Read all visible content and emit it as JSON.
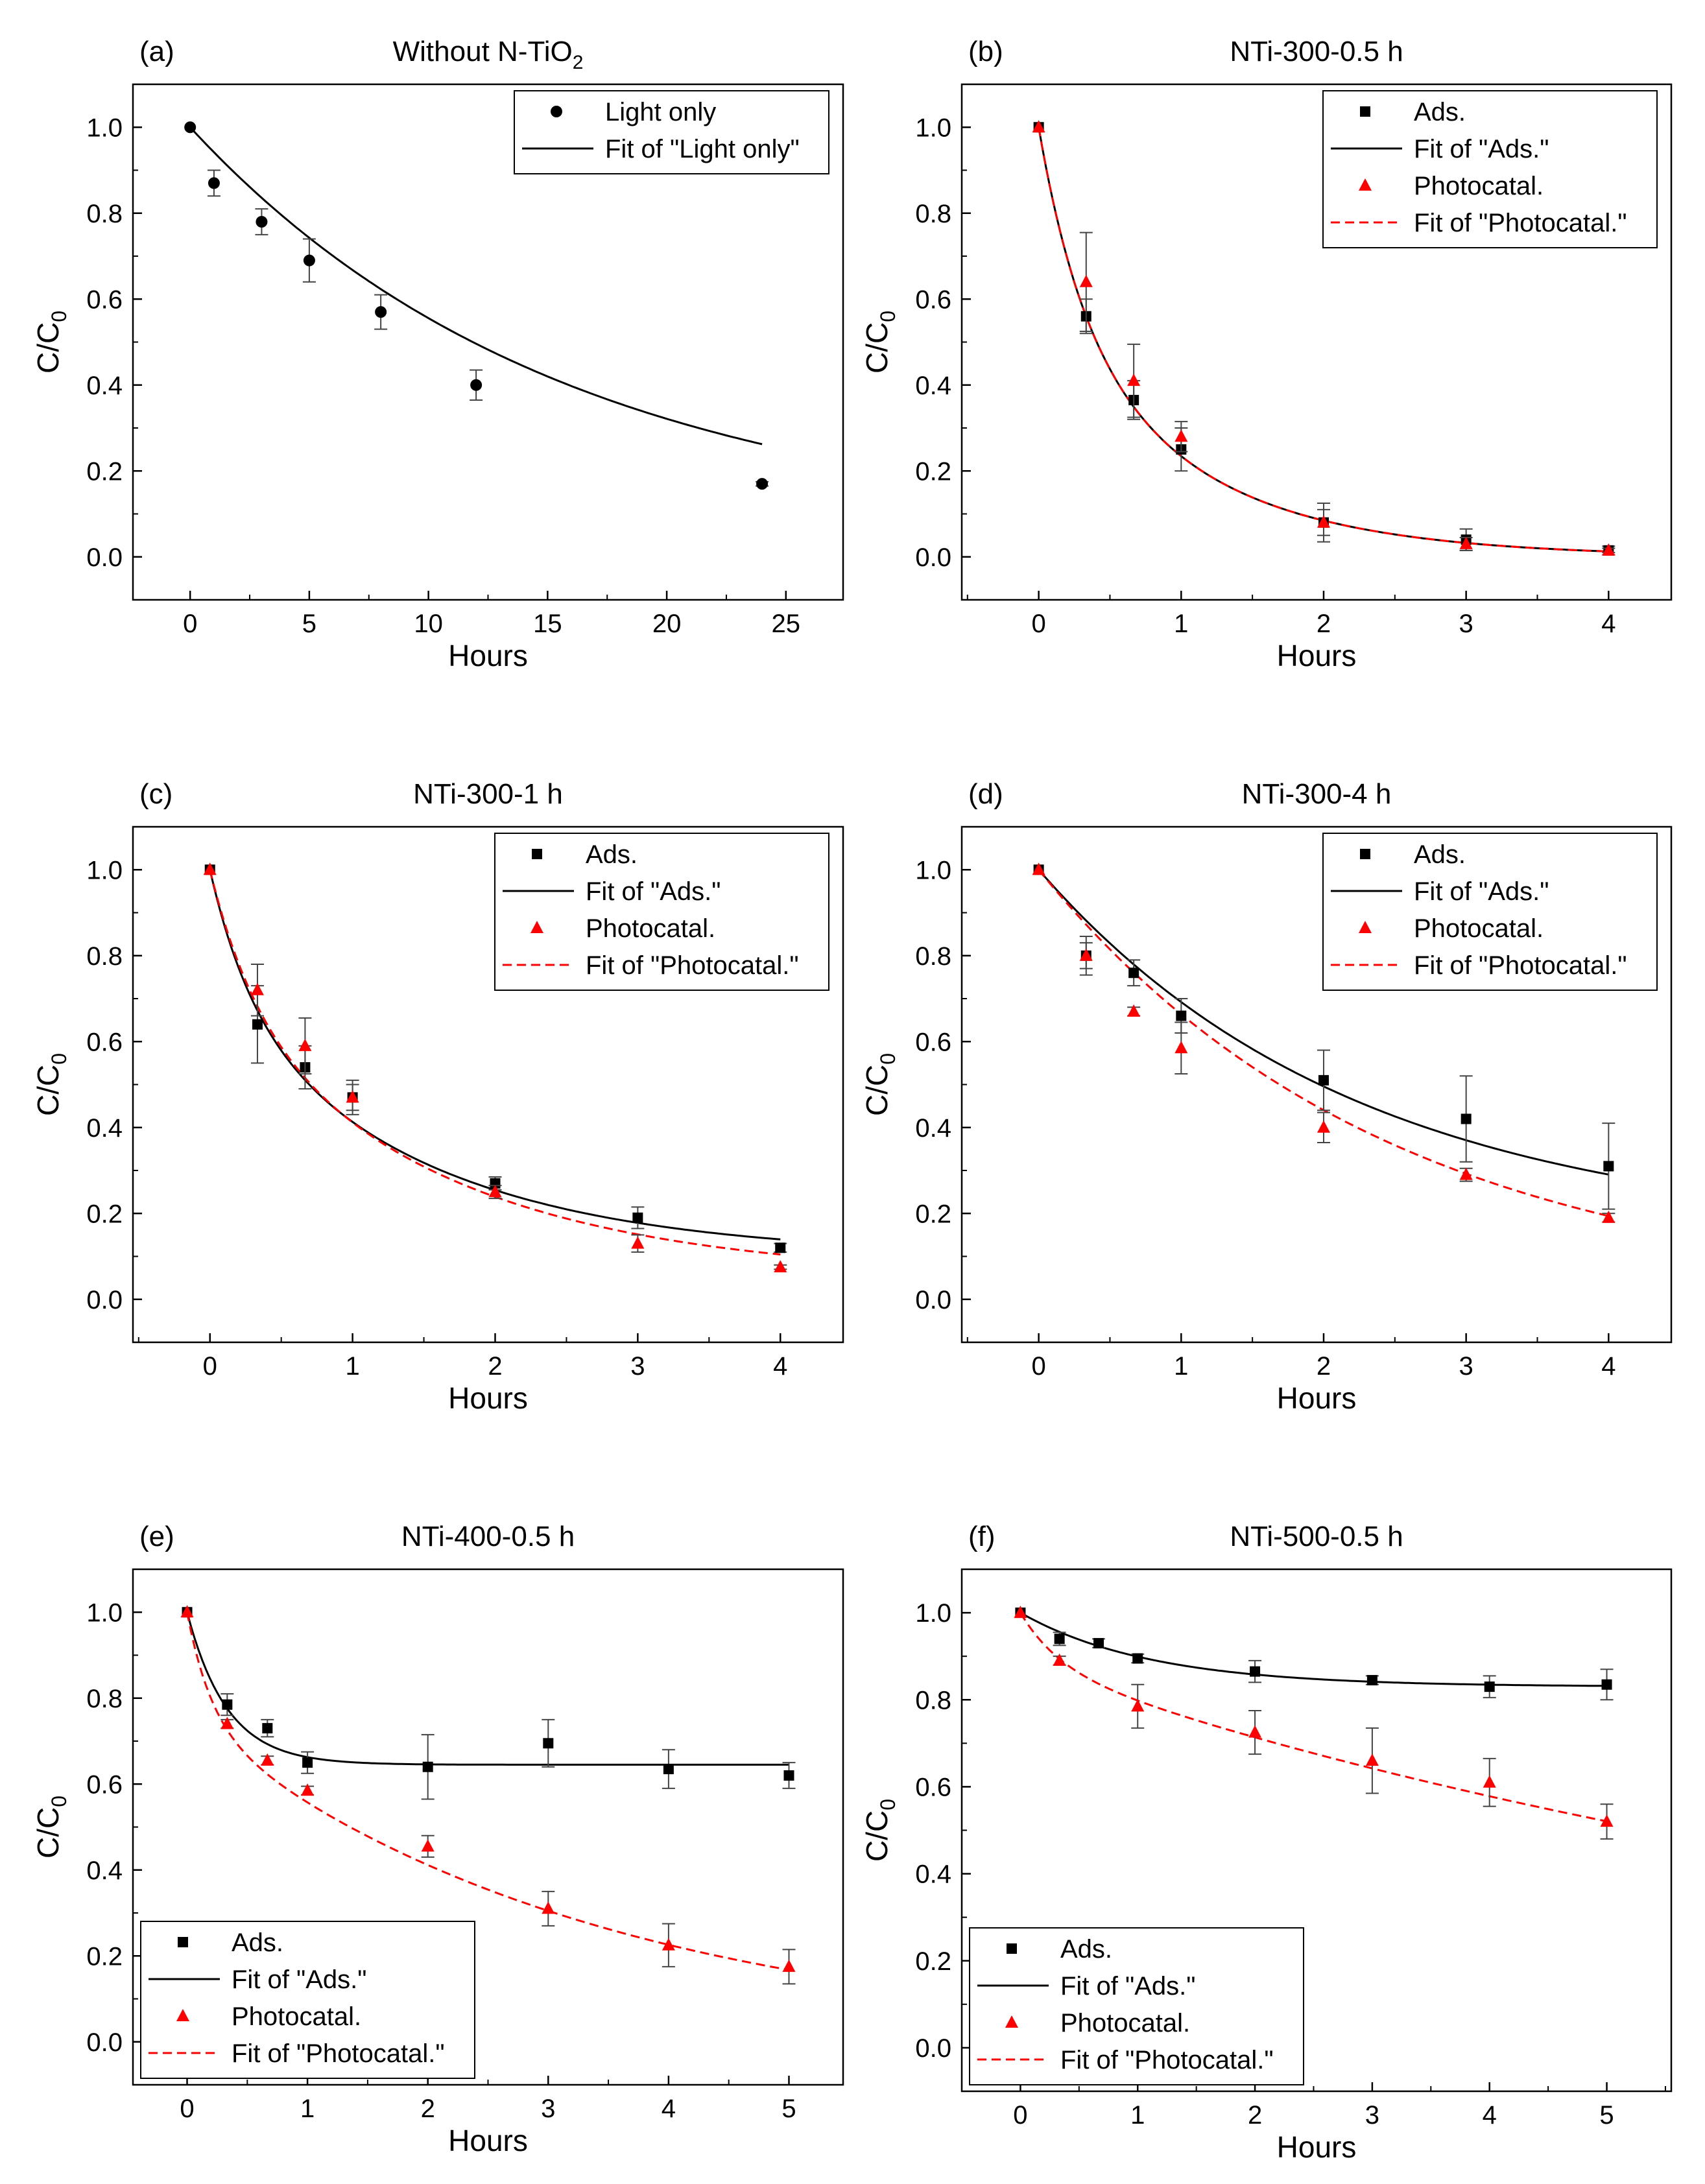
{
  "figure": {
    "ylabel_prefix": "C/C",
    "ylabel_sub": "0"
  },
  "chart_data": [
    {
      "panel": "(a)",
      "type": "scatter",
      "title": "Without N-TiO",
      "title_sub": "2",
      "xlabel": "Hours",
      "ylabel": "C/C0",
      "xlim": [
        -2.4,
        27.4
      ],
      "ylim": [
        -0.1,
        1.1
      ],
      "xticks": [
        0,
        5,
        10,
        15,
        20,
        25
      ],
      "yticks": [
        0.0,
        0.2,
        0.4,
        0.6,
        0.8,
        1.0
      ],
      "legend_position": "top-right",
      "series": [
        {
          "name": "Light only",
          "kind": "points",
          "marker": "circle",
          "color": "#000000",
          "x": [
            0,
            1,
            3,
            5,
            8,
            12,
            24
          ],
          "y": [
            1.0,
            0.87,
            0.78,
            0.69,
            0.57,
            0.4,
            0.17
          ],
          "err": [
            0,
            0.03,
            0.03,
            0.05,
            0.04,
            0.035,
            0.005
          ]
        },
        {
          "name": "Fit of \"Light only\"",
          "kind": "fit",
          "color": "#000000",
          "dash": false,
          "model": {
            "A": 0.94,
            "k": 0.064,
            "c": 0.06
          },
          "x_range": [
            0,
            24
          ]
        }
      ]
    },
    {
      "panel": "(b)",
      "type": "scatter",
      "title": "NTi-300-0.5 h",
      "xlabel": "Hours",
      "ylabel": "C/C0",
      "xlim": [
        -0.54,
        4.44
      ],
      "ylim": [
        -0.1,
        1.1
      ],
      "xticks": [
        0,
        1,
        2,
        3,
        4
      ],
      "yticks": [
        0.0,
        0.2,
        0.4,
        0.6,
        0.8,
        1.0
      ],
      "legend_position": "top-right",
      "series": [
        {
          "name": "Ads.",
          "kind": "points",
          "marker": "square",
          "color": "#000000",
          "x": [
            0,
            0.333,
            0.667,
            1,
            2,
            3,
            4
          ],
          "y": [
            1.0,
            0.56,
            0.365,
            0.25,
            0.08,
            0.04,
            0.015
          ],
          "err": [
            0,
            0.04,
            0.045,
            0.05,
            0.045,
            0.025,
            0.01
          ]
        },
        {
          "name": "Fit of \"Ads.\"",
          "kind": "fit",
          "color": "#000000",
          "dash": false,
          "model": {
            "a": 0.44,
            "k1": 3.2,
            "b": 0.56,
            "k2": 0.95,
            "c": 0.0
          },
          "x_range": [
            0,
            4
          ]
        },
        {
          "name": "Photocatal.",
          "kind": "points",
          "marker": "triangle",
          "color": "#ff0000",
          "x": [
            0,
            0.333,
            0.667,
            1,
            2,
            3,
            4
          ],
          "y": [
            1.0,
            0.64,
            0.41,
            0.28,
            0.08,
            0.03,
            0.015
          ],
          "err": [
            0,
            0.115,
            0.085,
            0.035,
            0.03,
            0.015,
            0.005
          ]
        },
        {
          "name": "Fit of \"Photocatal.\"",
          "kind": "fit",
          "color": "#ff0000",
          "dash": true,
          "model": {
            "a": 0.44,
            "k1": 3.2,
            "b": 0.56,
            "k2": 0.95,
            "c": 0.0
          },
          "x_range": [
            0,
            4
          ]
        }
      ]
    },
    {
      "panel": "(c)",
      "type": "scatter",
      "title": "NTi-300-1 h",
      "xlabel": "Hours",
      "ylabel": "C/C0",
      "xlim": [
        -0.54,
        4.44
      ],
      "ylim": [
        -0.1,
        1.1
      ],
      "xticks": [
        0,
        1,
        2,
        3,
        4
      ],
      "yticks": [
        0.0,
        0.2,
        0.4,
        0.6,
        0.8,
        1.0
      ],
      "legend_position": "top-right",
      "series": [
        {
          "name": "Ads.",
          "kind": "points",
          "marker": "square",
          "color": "#000000",
          "x": [
            0,
            0.333,
            0.667,
            1,
            2,
            3,
            4
          ],
          "y": [
            1.0,
            0.64,
            0.54,
            0.47,
            0.27,
            0.19,
            0.12
          ],
          "err": [
            0,
            0.09,
            0.05,
            0.04,
            0.015,
            0.025,
            0.01
          ]
        },
        {
          "name": "Fit of \"Ads.\"",
          "kind": "fit",
          "color": "#000000",
          "dash": false,
          "model": {
            "a": 0.3,
            "k1": 3.5,
            "b": 0.6,
            "k2": 0.68,
            "c": 0.1
          },
          "x_range": [
            0,
            4
          ]
        },
        {
          "name": "Photocatal.",
          "kind": "points",
          "marker": "triangle",
          "color": "#ff0000",
          "x": [
            0,
            0.333,
            0.667,
            1,
            2,
            3,
            4
          ],
          "y": [
            1.0,
            0.72,
            0.59,
            0.47,
            0.25,
            0.13,
            0.075
          ],
          "err": [
            0,
            0.06,
            0.065,
            0.03,
            0.015,
            0.02,
            0.005
          ]
        },
        {
          "name": "Fit of \"Photocatal.\"",
          "kind": "fit",
          "color": "#ff0000",
          "dash": true,
          "model": {
            "a": 0.3,
            "k1": 3.2,
            "b": 0.65,
            "k2": 0.62,
            "c": 0.05
          },
          "x_range": [
            0,
            4
          ]
        }
      ]
    },
    {
      "panel": "(d)",
      "type": "scatter",
      "title": "NTi-300-4 h",
      "xlabel": "Hours",
      "ylabel": "C/C0",
      "xlim": [
        -0.54,
        4.44
      ],
      "ylim": [
        -0.1,
        1.1
      ],
      "xticks": [
        0,
        1,
        2,
        3,
        4
      ],
      "yticks": [
        0.0,
        0.2,
        0.4,
        0.6,
        0.8,
        1.0
      ],
      "legend_position": "top-right",
      "series": [
        {
          "name": "Ads.",
          "kind": "points",
          "marker": "square",
          "color": "#000000",
          "x": [
            0,
            0.333,
            0.667,
            1,
            2,
            3,
            4
          ],
          "y": [
            1.0,
            0.8,
            0.76,
            0.66,
            0.51,
            0.42,
            0.31
          ],
          "err": [
            0,
            0.045,
            0.03,
            0.04,
            0.07,
            0.1,
            0.1
          ]
        },
        {
          "name": "Fit of \"Ads.\"",
          "kind": "fit",
          "color": "#000000",
          "dash": false,
          "model": {
            "A": 0.85,
            "k": 0.45,
            "c": 0.15
          },
          "x_range": [
            0,
            4
          ]
        },
        {
          "name": "Photocatal.",
          "kind": "points",
          "marker": "triangle",
          "color": "#ff0000",
          "x": [
            0,
            0.333,
            0.667,
            1,
            2,
            3,
            4
          ],
          "y": [
            1.0,
            0.8,
            0.67,
            0.585,
            0.4,
            0.29,
            0.19
          ],
          "err": [
            0,
            0.03,
            0.01,
            0.06,
            0.035,
            0.015,
            0.01
          ]
        },
        {
          "name": "Fit of \"Photocatal.\"",
          "kind": "fit",
          "color": "#ff0000",
          "dash": true,
          "model": {
            "A": 1.0,
            "k": 0.41,
            "c": 0.0
          },
          "x_range": [
            0,
            4
          ]
        }
      ]
    },
    {
      "panel": "(e)",
      "type": "scatter",
      "title": "NTi-400-0.5 h",
      "xlabel": "Hours",
      "ylabel": "C/C0",
      "xlim": [
        -0.45,
        5.45
      ],
      "ylim": [
        -0.1,
        1.1
      ],
      "xticks": [
        0,
        1,
        2,
        3,
        4,
        5
      ],
      "yticks": [
        0.0,
        0.2,
        0.4,
        0.6,
        0.8,
        1.0
      ],
      "legend_position": "bottom-left",
      "series": [
        {
          "name": "Ads.",
          "kind": "points",
          "marker": "square",
          "color": "#000000",
          "x": [
            0,
            0.333,
            0.667,
            1,
            2,
            3,
            4,
            5
          ],
          "y": [
            1.0,
            0.785,
            0.73,
            0.65,
            0.64,
            0.695,
            0.635,
            0.62
          ],
          "err": [
            0,
            0.025,
            0.02,
            0.025,
            0.075,
            0.055,
            0.045,
            0.03
          ]
        },
        {
          "name": "Fit of \"Ads.\"",
          "kind": "fit",
          "color": "#000000",
          "dash": false,
          "model": {
            "A": 0.355,
            "k": 3.0,
            "c": 0.645
          },
          "x_range": [
            0,
            5
          ]
        },
        {
          "name": "Photocatal.",
          "kind": "points",
          "marker": "triangle",
          "color": "#ff0000",
          "x": [
            0,
            0.333,
            0.667,
            1,
            2,
            3,
            4,
            5
          ],
          "y": [
            1.0,
            0.74,
            0.655,
            0.585,
            0.455,
            0.31,
            0.225,
            0.175
          ],
          "err": [
            0,
            0.01,
            0.01,
            0.01,
            0.025,
            0.04,
            0.05,
            0.04
          ]
        },
        {
          "name": "Fit of \"Photocatal.\"",
          "kind": "fit",
          "color": "#ff0000",
          "dash": true,
          "model": {
            "a": 0.25,
            "k1": 5.0,
            "b": 0.75,
            "k2": 0.3,
            "c": 0.0
          },
          "x_range": [
            0,
            5
          ]
        }
      ]
    },
    {
      "panel": "(f)",
      "type": "scatter",
      "title": "NTi-500-0.5 h",
      "xlabel": "Hours",
      "ylabel": "C/C0",
      "xlim": [
        -0.5,
        5.55
      ],
      "ylim": [
        -0.1,
        1.1
      ],
      "xticks": [
        0,
        1,
        2,
        3,
        4,
        5
      ],
      "yticks": [
        0.0,
        0.2,
        0.4,
        0.6,
        0.8,
        1.0
      ],
      "legend_position": "bottom-left",
      "series": [
        {
          "name": "Ads.",
          "kind": "points",
          "marker": "square",
          "color": "#000000",
          "x": [
            0,
            0.333,
            0.667,
            1,
            2,
            3,
            4,
            5
          ],
          "y": [
            1.0,
            0.94,
            0.93,
            0.895,
            0.865,
            0.845,
            0.83,
            0.835
          ],
          "err": [
            0,
            0.015,
            0.01,
            0.01,
            0.025,
            0.01,
            0.025,
            0.035
          ]
        },
        {
          "name": "Fit of \"Ads.\"",
          "kind": "fit",
          "color": "#000000",
          "dash": false,
          "model": {
            "A": 0.17,
            "k": 0.9,
            "c": 0.83
          },
          "x_range": [
            0,
            5
          ]
        },
        {
          "name": "Photocatal.",
          "kind": "points",
          "marker": "triangle",
          "color": "#ff0000",
          "x": [
            0,
            0.333,
            0.667,
            1,
            2,
            3,
            4,
            5
          ],
          "y": [
            1.0,
            0.89,
            null,
            0.785,
            0.725,
            0.66,
            0.61,
            0.52
          ],
          "err": [
            0,
            0.01,
            0,
            0.05,
            0.05,
            0.075,
            0.055,
            0.04
          ]
        },
        {
          "name": "Fit of \"Photocatal.\"",
          "kind": "fit",
          "color": "#ff0000",
          "dash": true,
          "model": {
            "a": 0.12,
            "k1": 3.0,
            "b": 0.88,
            "k2": 0.105,
            "c": 0.0
          },
          "x_range": [
            0,
            5
          ]
        }
      ]
    }
  ]
}
